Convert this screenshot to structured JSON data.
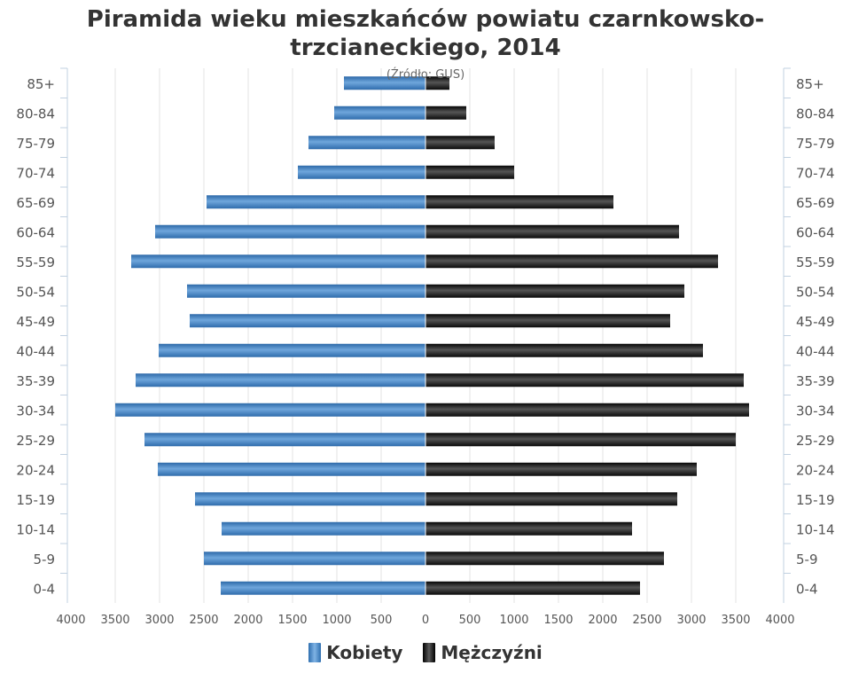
{
  "chart_data": {
    "type": "bar",
    "orientation": "horizontal",
    "title_lines": [
      "Piramida wieku mieszkańców powiatu czarnkowsko-",
      "trzcianeckiego, 2014"
    ],
    "subtitle": "(Źródło: GUS)",
    "categories": [
      "85+",
      "80-84",
      "75-79",
      "70-74",
      "65-69",
      "60-64",
      "55-59",
      "50-54",
      "45-49",
      "40-44",
      "35-39",
      "30-34",
      "25-29",
      "20-24",
      "15-19",
      "10-14",
      "5-9",
      "0-4"
    ],
    "series": [
      {
        "name": "Kobiety",
        "color": "#3d7fc1",
        "values": [
          920,
          1030,
          1320,
          1440,
          2470,
          3050,
          3320,
          2690,
          2660,
          3010,
          3270,
          3500,
          3170,
          3020,
          2600,
          2300,
          2500,
          2310
        ]
      },
      {
        "name": "Mężczyźni",
        "color": "#111111",
        "values": [
          270,
          460,
          780,
          1000,
          2120,
          2860,
          3300,
          2920,
          2760,
          3130,
          3590,
          3650,
          3500,
          3060,
          2840,
          2330,
          2690,
          2420
        ]
      }
    ],
    "x_ticks_left": [
      "4000",
      "3500",
      "3000",
      "2500",
      "2000",
      "1500",
      "1000",
      "500",
      "0"
    ],
    "x_ticks_right": [
      "0",
      "500",
      "1000",
      "1500",
      "2000",
      "2500",
      "3000",
      "3500",
      "4000"
    ],
    "xlim": [
      -4000,
      4000
    ],
    "grid": true,
    "legend_position": "bottom"
  }
}
